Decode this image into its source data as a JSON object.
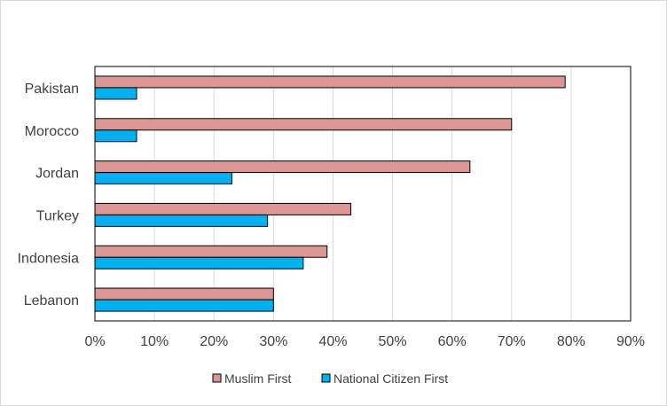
{
  "chart_data": {
    "type": "bar",
    "orientation": "horizontal",
    "title": "",
    "categories": [
      "Pakistan",
      "Morocco",
      "Jordan",
      "Turkey",
      "Indonesia",
      "Lebanon"
    ],
    "series": [
      {
        "name": "Muslim First",
        "values": [
          79,
          70,
          63,
          43,
          39,
          30
        ],
        "color": "#da9694"
      },
      {
        "name": "National Citizen First",
        "values": [
          7,
          7,
          23,
          29,
          35,
          30
        ],
        "color": "#00b0f0"
      }
    ],
    "xlim": [
      0,
      90
    ],
    "xticks": [
      0,
      10,
      20,
      30,
      40,
      50,
      60,
      70,
      80,
      90
    ],
    "tick_format": "percent",
    "grid": true,
    "legend_position": "bottom",
    "xlabel": "",
    "ylabel": ""
  }
}
